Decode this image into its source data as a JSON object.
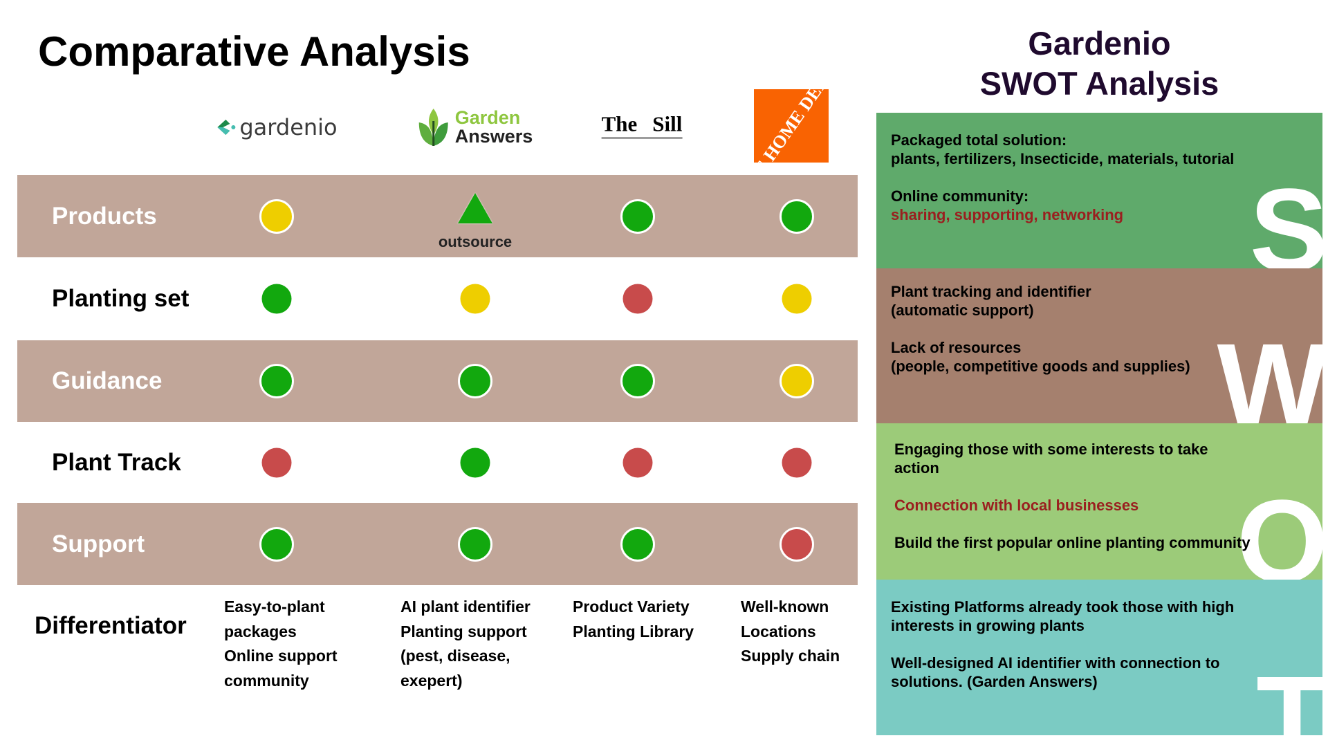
{
  "title": "Comparative Analysis",
  "competitors": [
    {
      "name": "gardenio"
    },
    {
      "name": "Garden Answers",
      "line1": "Garden",
      "line2": "Answers"
    },
    {
      "name": "The Sill",
      "line1": "The",
      "line2": "Sill"
    },
    {
      "name": "The Home Depot",
      "logo_text": "THE HOME DEPOT"
    }
  ],
  "colors": {
    "good": "#12a80e",
    "medium": "#eece00",
    "poor": "#c84b4b",
    "band": "#c1a699"
  },
  "rows": [
    {
      "label": "Products",
      "ratings": [
        "medium",
        "good-triangle",
        "good",
        "good"
      ],
      "note": "outsource"
    },
    {
      "label": "Planting set",
      "ratings": [
        "good",
        "medium",
        "poor",
        "medium"
      ]
    },
    {
      "label": "Guidance",
      "ratings": [
        "good",
        "good",
        "good",
        "medium"
      ]
    },
    {
      "label": "Plant Track",
      "ratings": [
        "poor",
        "good",
        "poor",
        "poor"
      ]
    },
    {
      "label": "Support",
      "ratings": [
        "good",
        "good",
        "good",
        "poor"
      ]
    }
  ],
  "differentiator": {
    "label": "Differentiator",
    "items": [
      [
        "Easy-to-plant",
        "packages",
        "Online support",
        "community"
      ],
      [
        "AI plant identifier",
        "Planting support",
        "(pest, disease,",
        "exepert)"
      ],
      [
        "Product Variety",
        "Planting Library"
      ],
      [
        "Well-known",
        "Locations",
        "Supply chain"
      ]
    ]
  },
  "swot": {
    "title1": "Gardenio",
    "title2": "SWOT Analysis",
    "s": {
      "letter": "S",
      "p1a": "Packaged total solution:",
      "p1b": "plants, fertilizers, Insecticide, materials, tutorial",
      "p2a": "Online community:",
      "p2b": "sharing, supporting, networking"
    },
    "w": {
      "letter": "W",
      "p1a": "Plant tracking and identifier",
      "p1b": "(automatic support)",
      "p2a": "Lack of resources",
      "p2b": "(people, competitive goods and supplies)"
    },
    "o": {
      "letter": "O",
      "p1": "Engaging those with some interests to take action",
      "p2": "Connection with local businesses",
      "p3": "Build the first popular online planting community"
    },
    "t": {
      "letter": "T",
      "p1": "Existing Platforms already took those with high interests in growing plants",
      "p2": "Well-designed AI identifier with connection to solutions. (Garden Answers)"
    }
  }
}
